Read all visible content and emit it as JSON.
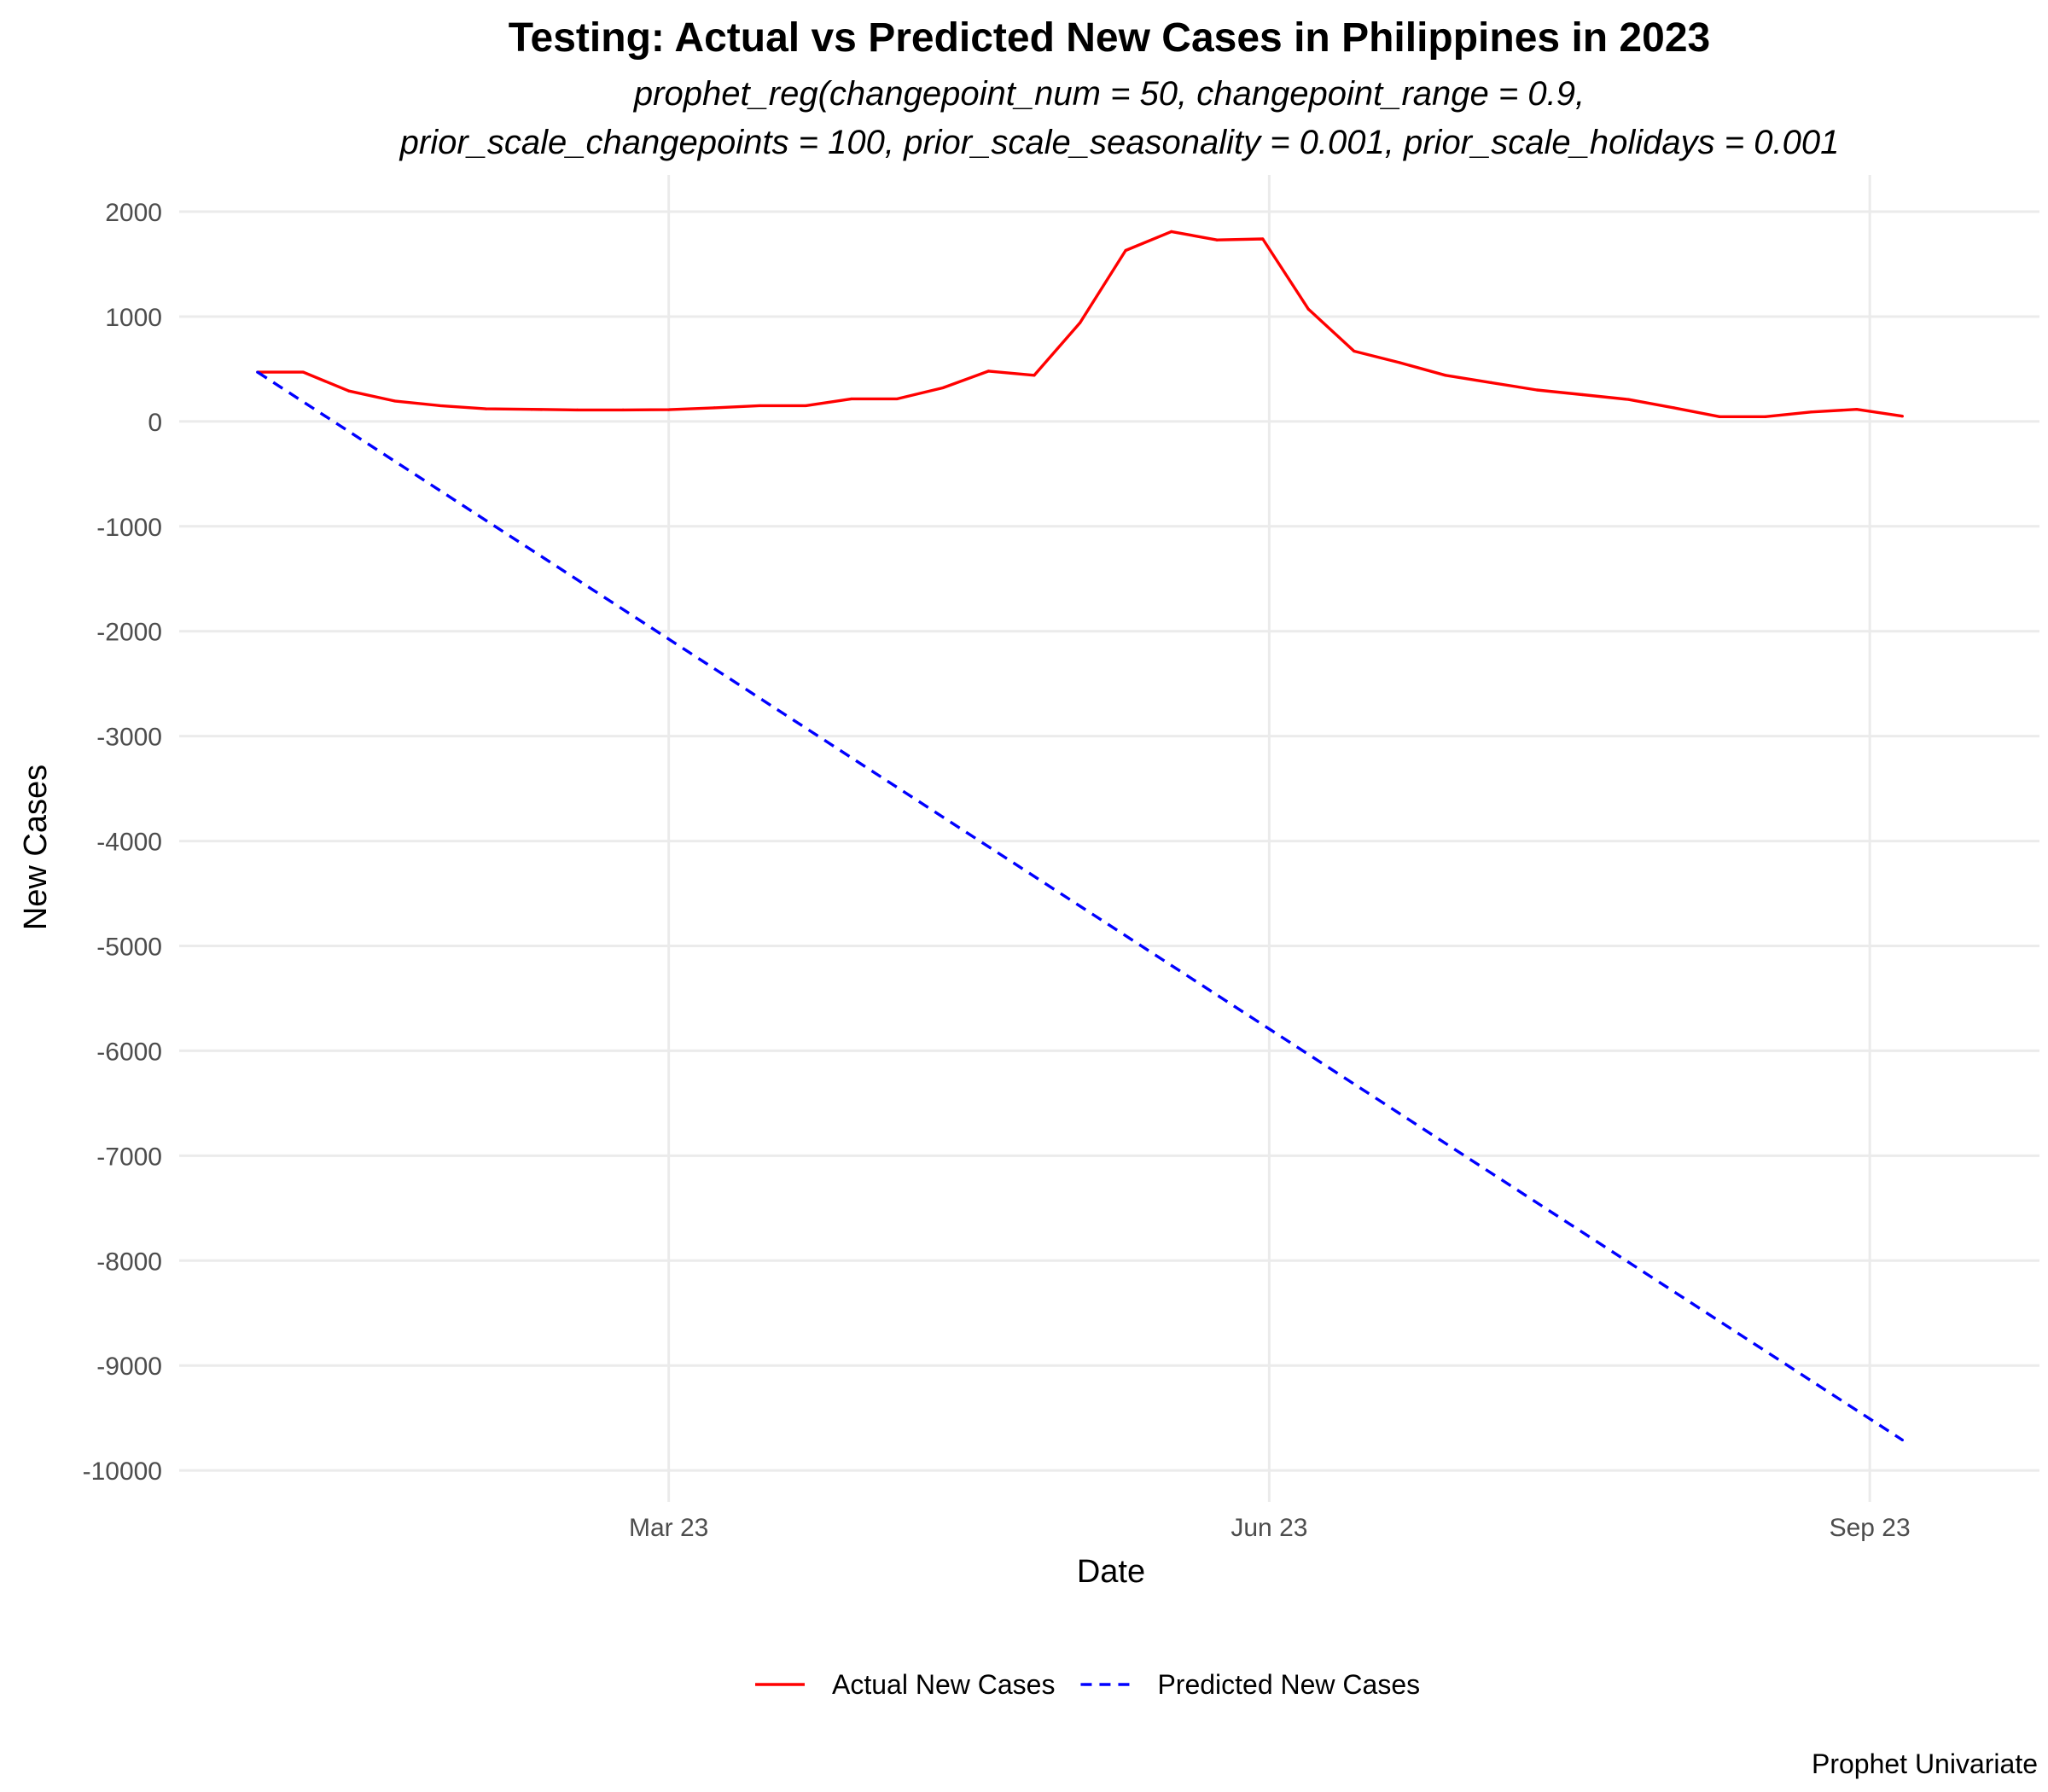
{
  "chart_data": {
    "type": "line",
    "title": "Testing: Actual vs Predicted New Cases in Philippines in 2023",
    "subtitle_lines": [
      "prophet_reg(changepoint_num = 50, changepoint_range = 0.9,",
      "prior_scale_changepoints = 100, prior_scale_seasonality = 0.001, prior_scale_holidays = 0.001"
    ],
    "xlabel": "Date",
    "ylabel": "New Cases",
    "caption": "Prophet Univariate",
    "x_ticks": [
      {
        "date": "2023-03-23",
        "label": "Mar 23"
      },
      {
        "date": "2023-06-23",
        "label": "Jun 23"
      },
      {
        "date": "2023-09-23",
        "label": "Sep 23"
      }
    ],
    "xlim": [
      "2023-01-07",
      "2023-10-19"
    ],
    "y_ticks": [
      2000,
      1000,
      0,
      -1000,
      -2000,
      -3000,
      -4000,
      -5000,
      -6000,
      -7000,
      -8000,
      -9000,
      -10000
    ],
    "ylim": [
      -10300,
      2350
    ],
    "grid": true,
    "legend_position": "bottom",
    "series": [
      {
        "name": "Actual New Cases",
        "color": "#ff0000",
        "dash": "solid",
        "points": [
          [
            "2023-01-19",
            470
          ],
          [
            "2023-01-26",
            470
          ],
          [
            "2023-02-02",
            290
          ],
          [
            "2023-02-09",
            195
          ],
          [
            "2023-02-16",
            150
          ],
          [
            "2023-02-23",
            120
          ],
          [
            "2023-03-02",
            115
          ],
          [
            "2023-03-09",
            110
          ],
          [
            "2023-03-16",
            110
          ],
          [
            "2023-03-23",
            112
          ],
          [
            "2023-03-30",
            130
          ],
          [
            "2023-04-06",
            150
          ],
          [
            "2023-04-13",
            150
          ],
          [
            "2023-04-20",
            215
          ],
          [
            "2023-04-27",
            215
          ],
          [
            "2023-05-04",
            320
          ],
          [
            "2023-05-11",
            480
          ],
          [
            "2023-05-18",
            440
          ],
          [
            "2023-05-25",
            940
          ],
          [
            "2023-06-01",
            1630
          ],
          [
            "2023-06-08",
            1810
          ],
          [
            "2023-06-15",
            1730
          ],
          [
            "2023-06-22",
            1740
          ],
          [
            "2023-06-29",
            1070
          ],
          [
            "2023-07-06",
            670
          ],
          [
            "2023-07-13",
            560
          ],
          [
            "2023-07-20",
            440
          ],
          [
            "2023-07-27",
            370
          ],
          [
            "2023-08-03",
            300
          ],
          [
            "2023-08-10",
            255
          ],
          [
            "2023-08-17",
            210
          ],
          [
            "2023-08-24",
            130
          ],
          [
            "2023-08-31",
            45
          ],
          [
            "2023-09-07",
            45
          ],
          [
            "2023-09-14",
            90
          ],
          [
            "2023-09-21",
            115
          ],
          [
            "2023-09-28",
            50
          ]
        ]
      },
      {
        "name": "Predicted New Cases",
        "color": "#0000ff",
        "dash": "dashed",
        "points": [
          [
            "2023-01-19",
            470
          ],
          [
            "2023-09-28",
            -9710
          ]
        ]
      }
    ]
  }
}
